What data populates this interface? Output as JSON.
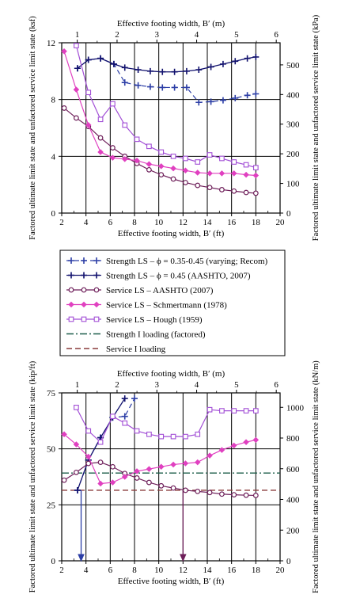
{
  "colors": {
    "strength_varying": "#2c3ea6",
    "strength_aashto": "#12126e",
    "service_aashto": "#6e1f5a",
    "service_schmertmann": "#e040c0",
    "service_hough": "#a24fd6",
    "strength_loading": "#1c5e4a",
    "service_loading": "#8a3c3c",
    "grid": "#000000"
  },
  "legend": [
    {
      "key": "sv",
      "label": "Strength LS – ϕ = 0.35-0.45 (varying; Recom)"
    },
    {
      "key": "sa",
      "label": "Strength LS – ϕ = 0.45 (AASHTO, 2007)"
    },
    {
      "key": "va",
      "label": "Service LS – AASHTO (2007)"
    },
    {
      "key": "vs",
      "label": "Service LS – Schmertmann (1978)"
    },
    {
      "key": "vh",
      "label": "Service LS – Hough (1959)"
    },
    {
      "key": "sl",
      "label": "Strength I loading (factored)"
    },
    {
      "key": "vl",
      "label": "Service I loading"
    }
  ],
  "chart_data": [
    {
      "type": "line",
      "panel": "top",
      "top_axis_label": "Effective footing width, B′ (m)",
      "top_ticks": [
        "1",
        "2",
        "3",
        "4",
        "5",
        "6"
      ],
      "xlabel": "Effective footing width, B′ (ft)",
      "x_ticks": [
        "2",
        "4",
        "6",
        "8",
        "10",
        "12",
        "14",
        "16",
        "18",
        "20"
      ],
      "xlim": [
        2,
        20
      ],
      "ylabel": "Factored ultimate limit state and unfactored service limit state (ksf)",
      "y_ticks": [
        "0",
        "4",
        "8",
        "12"
      ],
      "ylim": [
        0,
        12
      ],
      "y2label": "Factored ultimate limit state and unfactored service limit state (kPa)",
      "y2_ticks": [
        "0",
        "100",
        "200",
        "300",
        "400",
        "500"
      ],
      "y2_per_unit": 47.88,
      "grid": true,
      "series": [
        {
          "key": "sv",
          "x": [
            3.3,
            4.2,
            5.2,
            6.3,
            7.2,
            8.3,
            9.3,
            10.3,
            11.3,
            12.3,
            13.3,
            14.3,
            15.3,
            16.3,
            17.3,
            18.0
          ],
          "y": [
            10.2,
            10.8,
            10.9,
            10.5,
            9.2,
            9.0,
            8.9,
            8.85,
            8.85,
            8.85,
            7.8,
            7.85,
            7.95,
            8.1,
            8.3,
            8.4
          ]
        },
        {
          "key": "sa",
          "x": [
            3.3,
            4.2,
            5.2,
            6.3,
            7.2,
            8.3,
            9.3,
            10.3,
            11.3,
            12.3,
            13.3,
            14.3,
            15.3,
            16.3,
            17.3,
            18.0
          ],
          "y": [
            10.2,
            10.8,
            10.9,
            10.5,
            10.25,
            10.1,
            10.0,
            9.95,
            9.95,
            10.0,
            10.1,
            10.3,
            10.5,
            10.7,
            10.9,
            11.0
          ]
        },
        {
          "key": "va",
          "x": [
            2.2,
            3.2,
            4.2,
            5.2,
            6.2,
            7.2,
            8.2,
            9.2,
            10.2,
            11.2,
            12.2,
            13.2,
            14.2,
            15.2,
            16.2,
            17.2,
            18.0
          ],
          "y": [
            7.4,
            6.7,
            6.1,
            5.3,
            4.6,
            4.0,
            3.5,
            3.05,
            2.7,
            2.4,
            2.15,
            1.95,
            1.8,
            1.65,
            1.55,
            1.45,
            1.4
          ]
        },
        {
          "key": "vs",
          "x": [
            2.2,
            3.2,
            4.2,
            5.2,
            6.2,
            7.2,
            8.2,
            9.2,
            10.2,
            11.2,
            12.2,
            13.2,
            14.2,
            15.2,
            16.2,
            17.2,
            18.0
          ],
          "y": [
            11.4,
            8.7,
            6.2,
            4.3,
            3.9,
            3.8,
            3.7,
            3.45,
            3.3,
            3.15,
            3.0,
            2.85,
            2.8,
            2.8,
            2.8,
            2.7,
            2.65
          ]
        },
        {
          "key": "vh",
          "x": [
            3.2,
            4.2,
            5.2,
            6.2,
            7.2,
            8.2,
            9.2,
            10.2,
            11.2,
            12.2,
            13.2,
            14.2,
            15.2,
            16.2,
            17.2,
            18.0
          ],
          "y": [
            11.8,
            8.5,
            6.6,
            7.7,
            6.2,
            5.2,
            4.7,
            4.3,
            4.0,
            3.85,
            3.6,
            4.1,
            3.85,
            3.6,
            3.4,
            3.2
          ]
        }
      ]
    },
    {
      "type": "line",
      "panel": "bottom",
      "top_axis_label": "Effective footing width, B′ (m)",
      "top_ticks": [
        "1",
        "2",
        "3",
        "4",
        "5",
        "6"
      ],
      "xlabel": "Effective footing width, B′ (ft)",
      "x_ticks": [
        "2",
        "4",
        "6",
        "8",
        "10",
        "12",
        "14",
        "16",
        "18",
        "20"
      ],
      "xlim": [
        2,
        20
      ],
      "ylabel": "Factored ultimate limit state and unfactored service limit state (kip/ft)",
      "y_ticks": [
        "0",
        "25",
        "50",
        "75"
      ],
      "ylim": [
        0,
        75
      ],
      "y2label": "Factored ultimate limit state and unfactored service limit state (kN/m)",
      "y2_ticks": [
        "0",
        "200",
        "400",
        "600",
        "800",
        "1000"
      ],
      "y2_per_unit": 14.59,
      "grid": true,
      "reference_lines": [
        {
          "key": "sl",
          "y": 39.2
        },
        {
          "key": "vl",
          "y": 31.5
        }
      ],
      "drop_lines": [
        {
          "key": "sv",
          "x": 3.6,
          "y_from": 31.5
        },
        {
          "key": "va",
          "x": 12.0,
          "y_from": 31.5
        }
      ],
      "series": [
        {
          "key": "sv",
          "x": [
            3.3,
            4.2,
            5.2,
            6.2,
            7.2,
            8.0
          ],
          "y": [
            31.5,
            45.0,
            55.0,
            64.0,
            64.5,
            72.5
          ]
        },
        {
          "key": "sa",
          "x": [
            3.3,
            4.2,
            5.2,
            6.2,
            7.2
          ],
          "y": [
            31.5,
            45.0,
            55.0,
            64.0,
            72.5
          ]
        },
        {
          "key": "va",
          "x": [
            2.2,
            3.2,
            4.2,
            5.2,
            6.2,
            7.2,
            8.2,
            9.2,
            10.2,
            11.2,
            12.2,
            13.2,
            14.2,
            15.2,
            16.2,
            17.2,
            18.0
          ],
          "y": [
            36.0,
            39.5,
            43.5,
            44.0,
            42.0,
            39.0,
            37.0,
            35.0,
            33.5,
            32.5,
            31.5,
            31.0,
            30.5,
            29.8,
            29.5,
            29.3,
            29.2
          ]
        },
        {
          "key": "vs",
          "x": [
            2.2,
            3.2,
            4.2,
            5.2,
            6.2,
            7.2,
            8.2,
            9.2,
            10.2,
            11.2,
            12.2,
            13.2,
            14.2,
            15.2,
            16.2,
            17.2,
            18.0
          ],
          "y": [
            56.5,
            52.0,
            46.5,
            34.5,
            35.0,
            37.5,
            40.0,
            41.0,
            42.0,
            43.0,
            43.5,
            44.0,
            47.0,
            49.5,
            51.5,
            53.0,
            54.0
          ]
        },
        {
          "key": "vh",
          "x": [
            3.2,
            4.2,
            5.2,
            6.2,
            7.2,
            8.2,
            9.2,
            10.2,
            11.2,
            12.2,
            13.2,
            14.2,
            15.2,
            16.2,
            17.2,
            18.0
          ],
          "y": [
            68.5,
            58.0,
            53.0,
            64.5,
            61.5,
            58.0,
            56.5,
            55.5,
            55.5,
            55.5,
            56.5,
            67.5,
            67.0,
            67.0,
            67.0,
            67.0
          ]
        }
      ]
    }
  ]
}
